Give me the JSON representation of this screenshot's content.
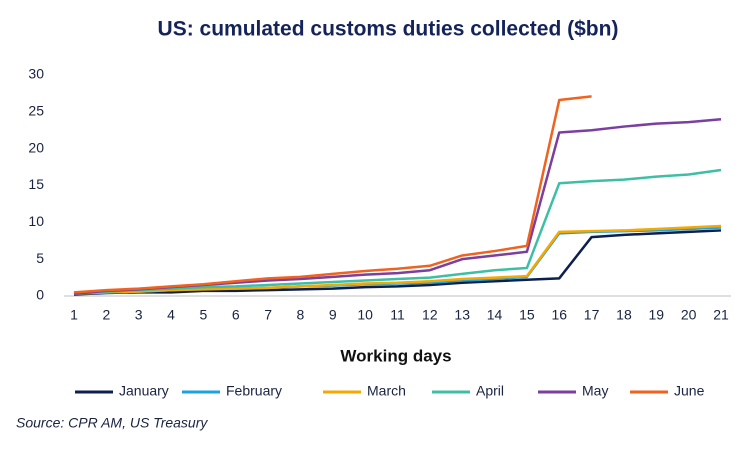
{
  "chart_data": {
    "type": "line",
    "title": "US: cumulated customs duties collected ($bn)",
    "x_label": "Working days",
    "source": "Source: CPR AM, US Treasury",
    "x": [
      1,
      2,
      3,
      4,
      5,
      6,
      7,
      8,
      9,
      10,
      11,
      12,
      13,
      14,
      15,
      16,
      17,
      18,
      19,
      20,
      21
    ],
    "xlim": [
      1,
      21
    ],
    "xticks": [
      1,
      2,
      3,
      4,
      5,
      6,
      7,
      8,
      9,
      10,
      11,
      12,
      13,
      14,
      15,
      16,
      17,
      18,
      19,
      20,
      21
    ],
    "ylim": [
      0,
      30
    ],
    "yticks": [
      0,
      5,
      10,
      15,
      20,
      25,
      30
    ],
    "legend": "bottom",
    "series": [
      {
        "name": "January",
        "color": "#0d1f4f",
        "values": [
          0.2,
          0.4,
          0.5,
          0.5,
          0.7,
          0.7,
          0.8,
          0.9,
          1.0,
          1.2,
          1.3,
          1.5,
          1.8,
          2.0,
          2.2,
          2.4,
          8.0,
          8.3,
          8.5,
          8.7,
          8.9
        ]
      },
      {
        "name": "February",
        "color": "#1aa3e0",
        "values": [
          0.3,
          0.5,
          0.6,
          0.8,
          1.0,
          1.0,
          1.1,
          1.3,
          1.4,
          1.6,
          1.7,
          1.8,
          2.1,
          2.3,
          2.6,
          8.5,
          8.7,
          8.8,
          8.9,
          9.1,
          9.3
        ]
      },
      {
        "name": "March",
        "color": "#f5a800",
        "values": [
          0.3,
          0.5,
          0.6,
          0.8,
          0.9,
          1.0,
          1.1,
          1.3,
          1.5,
          1.7,
          1.8,
          2.0,
          2.3,
          2.5,
          2.7,
          8.7,
          8.8,
          8.9,
          9.1,
          9.3,
          9.5
        ]
      },
      {
        "name": "April",
        "color": "#3dbfa5",
        "values": [
          0.3,
          0.6,
          0.8,
          1.0,
          1.2,
          1.3,
          1.5,
          1.7,
          1.9,
          2.1,
          2.3,
          2.5,
          3.0,
          3.5,
          3.8,
          15.3,
          15.6,
          15.8,
          16.2,
          16.5,
          17.1
        ]
      },
      {
        "name": "May",
        "color": "#7a3fa0",
        "values": [
          0.3,
          0.7,
          0.9,
          1.2,
          1.5,
          1.8,
          2.1,
          2.3,
          2.6,
          2.9,
          3.1,
          3.5,
          5.0,
          5.5,
          6.0,
          22.2,
          22.5,
          23.0,
          23.4,
          23.6,
          24.0
        ]
      },
      {
        "name": "June",
        "color": "#f0621e",
        "values": [
          0.5,
          0.8,
          1.0,
          1.3,
          1.6,
          2.0,
          2.4,
          2.6,
          3.0,
          3.4,
          3.7,
          4.1,
          5.5,
          6.1,
          6.8,
          26.6,
          27.1,
          null,
          null,
          null,
          null
        ]
      }
    ]
  }
}
